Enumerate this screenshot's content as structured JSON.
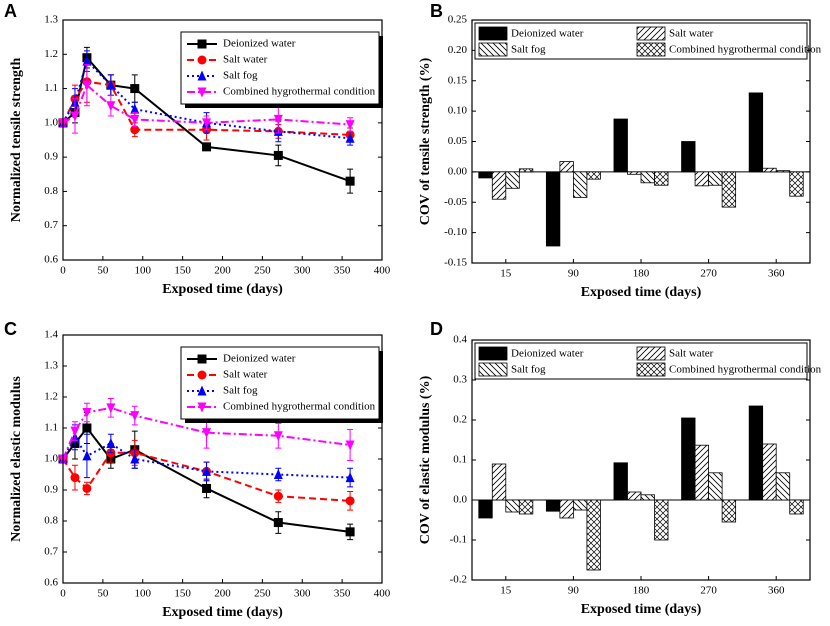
{
  "chart_data": [
    {
      "type": "line",
      "label": "A",
      "xlabel": "Exposed time (days)",
      "ylabel": "Normalized tensile strength",
      "x": [
        0,
        15,
        30,
        60,
        90,
        180,
        270,
        360
      ],
      "xlim": [
        0,
        400
      ],
      "xticks": [
        0,
        50,
        100,
        150,
        200,
        250,
        300,
        350,
        400
      ],
      "ylim": [
        0.6,
        1.3
      ],
      "yticks": [
        0.6,
        0.7,
        0.8,
        0.9,
        {
          "value": 1,
          "label": "1.0"
        },
        1.1,
        1.2,
        1.3
      ],
      "legend": "upper right",
      "series": [
        {
          "name": "Deionized water",
          "color": "#000000",
          "dash": "solid",
          "marker": "square",
          "values": [
            1.0,
            1.03,
            1.19,
            1.11,
            1.1,
            0.93,
            0.905,
            0.83
          ],
          "errors": [
            0.01,
            0.03,
            0.03,
            0.03,
            0.04,
            0.01,
            0.03,
            0.035
          ]
        },
        {
          "name": "Salt water",
          "color": "#ff0000",
          "dash": "dashed",
          "marker": "circle",
          "values": [
            1.0,
            1.07,
            1.12,
            1.11,
            0.98,
            0.98,
            0.975,
            0.965
          ],
          "errors": [
            0.01,
            0.04,
            0.06,
            0.03,
            0.02,
            0.03,
            0.02,
            0.02
          ]
        },
        {
          "name": "Salt fog",
          "color": "#0000ff",
          "dash": "dotted",
          "marker": "triangle-up",
          "values": [
            1.0,
            1.06,
            1.18,
            1.11,
            1.04,
            1.0,
            0.975,
            0.955
          ],
          "errors": [
            0.01,
            0.04,
            0.03,
            0.03,
            0.02,
            0.03,
            0.03,
            0.02
          ]
        },
        {
          "name": "Combined hygrothermal condition",
          "color": "#ff00ff",
          "dash": "dashdot",
          "marker": "triangle-down",
          "values": [
            1.0,
            1.02,
            1.11,
            1.05,
            1.01,
            1.0,
            1.01,
            0.995
          ],
          "errors": [
            0.01,
            0.05,
            0.06,
            0.03,
            0.02,
            0.02,
            0.04,
            0.02
          ]
        }
      ]
    },
    {
      "type": "bar",
      "label": "B",
      "xlabel": "Exposed time (days)",
      "ylabel": "COV of tensile strength (%)",
      "categories": [
        "15",
        "90",
        "180",
        "270",
        "360"
      ],
      "ylim": [
        -0.15,
        0.25
      ],
      "yticks": [
        -0.15,
        {
          "value": -0.1,
          "label": "-0.10"
        },
        -0.05,
        {
          "value": 0,
          "label": "0.00"
        },
        0.05,
        {
          "value": 0.1,
          "label": "0.10"
        },
        0.15,
        {
          "value": 0.2,
          "label": "0.20"
        },
        0.25
      ],
      "legend": "upper center",
      "series": [
        {
          "name": "Deionized water",
          "color": "#000000",
          "pattern": "solid",
          "values": [
            -0.01,
            -0.122,
            0.087,
            0.05,
            0.13
          ]
        },
        {
          "name": "Salt water",
          "color": "#000000",
          "pattern": "diagonal",
          "values": [
            -0.045,
            0.017,
            -0.004,
            -0.023,
            0.006
          ]
        },
        {
          "name": "Salt fog",
          "color": "#000000",
          "pattern": "back-diagonal",
          "values": [
            -0.027,
            -0.042,
            -0.018,
            -0.022,
            0.002
          ]
        },
        {
          "name": "Combined hygrothermal condition",
          "color": "#000000",
          "pattern": "crosshatch",
          "values": [
            0.005,
            -0.012,
            -0.022,
            -0.058,
            -0.04
          ]
        }
      ]
    },
    {
      "type": "line",
      "label": "C",
      "xlabel": "Exposed time (days)",
      "ylabel": "Normalized elastic modulus",
      "x": [
        0,
        15,
        30,
        60,
        90,
        180,
        270,
        360
      ],
      "xlim": [
        0,
        400
      ],
      "xticks": [
        0,
        50,
        100,
        150,
        200,
        250,
        300,
        350,
        400
      ],
      "ylim": [
        0.6,
        1.4
      ],
      "yticks": [
        0.6,
        0.7,
        0.8,
        0.9,
        {
          "value": 1,
          "label": "1.0"
        },
        1.1,
        1.2,
        1.3,
        1.4
      ],
      "legend": "upper right",
      "series": [
        {
          "name": "Deionized water",
          "color": "#000000",
          "dash": "solid",
          "marker": "square",
          "values": [
            1.0,
            1.05,
            1.1,
            1.0,
            1.03,
            0.905,
            0.795,
            0.765
          ],
          "errors": [
            0.01,
            0.05,
            0.05,
            0.03,
            0.06,
            0.03,
            0.035,
            0.025
          ]
        },
        {
          "name": "Salt water",
          "color": "#ff0000",
          "dash": "dashed",
          "marker": "circle",
          "values": [
            1.0,
            0.94,
            0.905,
            1.02,
            1.02,
            0.96,
            0.88,
            0.865
          ],
          "errors": [
            0.01,
            0.04,
            0.02,
            0.03,
            0.04,
            0.03,
            0.02,
            0.03
          ]
        },
        {
          "name": "Salt fog",
          "color": "#0000ff",
          "dash": "dotted",
          "marker": "triangle-up",
          "values": [
            1.0,
            1.07,
            1.01,
            1.05,
            1.0,
            0.96,
            0.95,
            0.94
          ],
          "errors": [
            0.01,
            0.04,
            0.07,
            0.03,
            0.03,
            0.03,
            0.02,
            0.03
          ]
        },
        {
          "name": "Combined hygrothermal condition",
          "color": "#ff00ff",
          "dash": "dashdot",
          "marker": "triangle-down",
          "values": [
            1.0,
            1.09,
            1.15,
            1.165,
            1.14,
            1.085,
            1.075,
            1.045
          ],
          "errors": [
            0.01,
            0.03,
            0.03,
            0.03,
            0.03,
            0.05,
            0.04,
            0.05
          ]
        }
      ]
    },
    {
      "type": "bar",
      "label": "D",
      "xlabel": "Exposed time (days)",
      "ylabel": "COV of elastic modulus (%)",
      "categories": [
        "15",
        "90",
        "180",
        "270",
        "360"
      ],
      "ylim": [
        -0.2,
        0.4
      ],
      "yticks": [
        -0.2,
        -0.1,
        {
          "value": 0,
          "label": "0.0"
        },
        0.1,
        0.2,
        0.3,
        0.4
      ],
      "legend": "upper center",
      "series": [
        {
          "name": "Deionized water",
          "color": "#000000",
          "pattern": "solid",
          "values": [
            -0.045,
            -0.028,
            0.093,
            0.205,
            0.235
          ]
        },
        {
          "name": "Salt water",
          "color": "#000000",
          "pattern": "diagonal",
          "values": [
            0.09,
            -0.045,
            0.02,
            0.137,
            0.14
          ]
        },
        {
          "name": "Salt fog",
          "color": "#000000",
          "pattern": "back-diagonal",
          "values": [
            -0.03,
            -0.025,
            0.013,
            0.068,
            0.068
          ]
        },
        {
          "name": "Combined hygrothermal condition",
          "color": "#000000",
          "pattern": "crosshatch",
          "values": [
            -0.035,
            -0.175,
            -0.1,
            -0.055,
            -0.035
          ]
        }
      ]
    }
  ]
}
